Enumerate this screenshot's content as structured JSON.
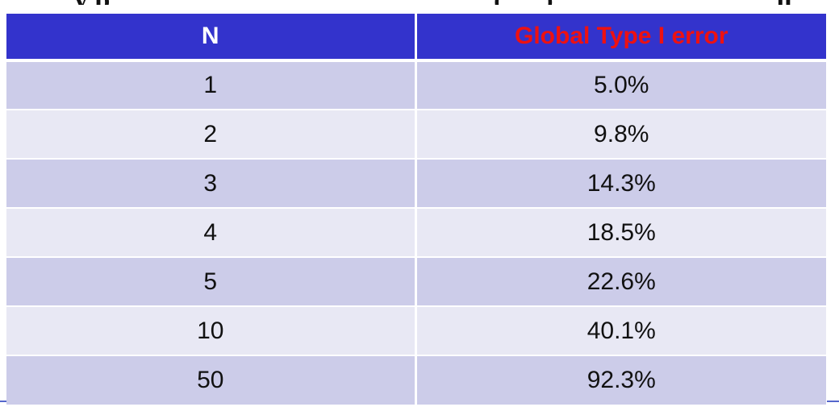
{
  "table": {
    "headers": [
      "N",
      "Global Type I error"
    ],
    "header_colors": {
      "n": "#ffffff",
      "error": "#ee1111",
      "background": "#3333cc"
    },
    "rows": [
      {
        "n": "1",
        "error": "5.0%"
      },
      {
        "n": "2",
        "error": "9.8%"
      },
      {
        "n": "3",
        "error": "14.3%"
      },
      {
        "n": "4",
        "error": "18.5%"
      },
      {
        "n": "5",
        "error": "22.6%"
      },
      {
        "n": "10",
        "error": "40.1%"
      },
      {
        "n": "50",
        "error": "92.3%"
      }
    ],
    "row_colors": [
      "#cccce9",
      "#e8e8f4"
    ]
  }
}
